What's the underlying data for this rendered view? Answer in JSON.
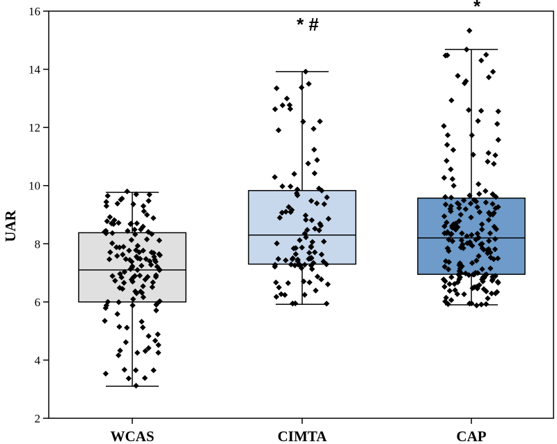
{
  "chart_data": {
    "type": "box",
    "title": "",
    "xlabel": "",
    "ylabel": "UAR",
    "ylim": [
      2,
      16
    ],
    "yticks": [
      2,
      4,
      6,
      8,
      10,
      12,
      14,
      16
    ],
    "categories": [
      "WCAS",
      "CIMTA",
      "CAP"
    ],
    "boxes": [
      {
        "name": "WCAS",
        "min": 3.1,
        "q1": 6.0,
        "median": 7.1,
        "q3": 8.38,
        "max": 9.77,
        "color": "#e0e0e0",
        "annotation": "",
        "n_points": 130,
        "seed": 11
      },
      {
        "name": "CIMTA",
        "min": 5.92,
        "q1": 7.3,
        "median": 8.3,
        "q3": 9.83,
        "max": 13.92,
        "color": "#c8d8ec",
        "annotation": "* #",
        "n_points": 95,
        "seed": 23
      },
      {
        "name": "CAP",
        "min": 5.9,
        "q1": 6.95,
        "median": 8.2,
        "q3": 9.57,
        "max": 14.68,
        "color": "#6e9bc9",
        "annotation": "*",
        "n_points": 185,
        "seed": 37
      }
    ],
    "highlight_points": [
      {
        "box": 0,
        "y": 3.12
      },
      {
        "box": 0,
        "y": 3.65
      },
      {
        "box": 0,
        "y": 4.25
      },
      {
        "box": 0,
        "y": 9.8
      },
      {
        "box": 1,
        "y": 13.92
      },
      {
        "box": 1,
        "y": 13.5
      },
      {
        "box": 1,
        "y": 12.2
      },
      {
        "box": 1,
        "y": 5.95
      },
      {
        "box": 2,
        "y": 15.33
      },
      {
        "box": 2,
        "y": 14.68
      },
      {
        "box": 2,
        "y": 13.52
      },
      {
        "box": 2,
        "y": 12.6
      },
      {
        "box": 2,
        "y": 5.88
      }
    ]
  }
}
